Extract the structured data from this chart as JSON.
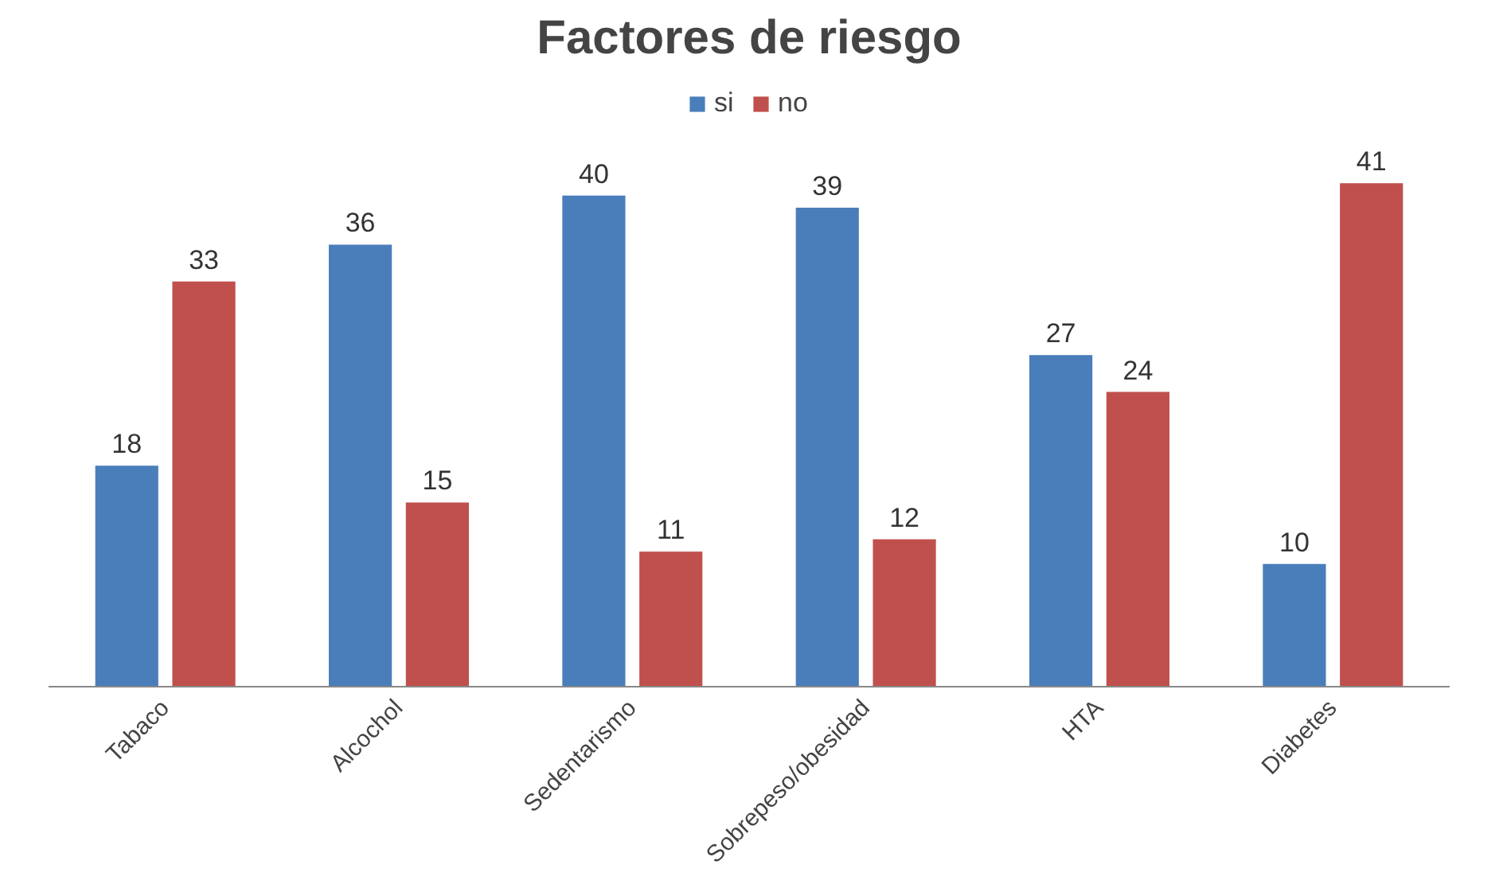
{
  "chart_data": {
    "type": "bar",
    "title": "Factores de riesgo",
    "categories": [
      "Tabaco",
      "Alcochol",
      "Sedentarismo",
      "Sobrepeso/obesidad",
      "HTA",
      "Diabetes"
    ],
    "series": [
      {
        "name": "si",
        "color": "#4a7ebb",
        "values": [
          18,
          36,
          40,
          39,
          27,
          10
        ]
      },
      {
        "name": "no",
        "color": "#c0504d",
        "values": [
          33,
          15,
          11,
          12,
          24,
          41
        ]
      }
    ],
    "data_labels": true,
    "grid": false,
    "legend": "top"
  }
}
